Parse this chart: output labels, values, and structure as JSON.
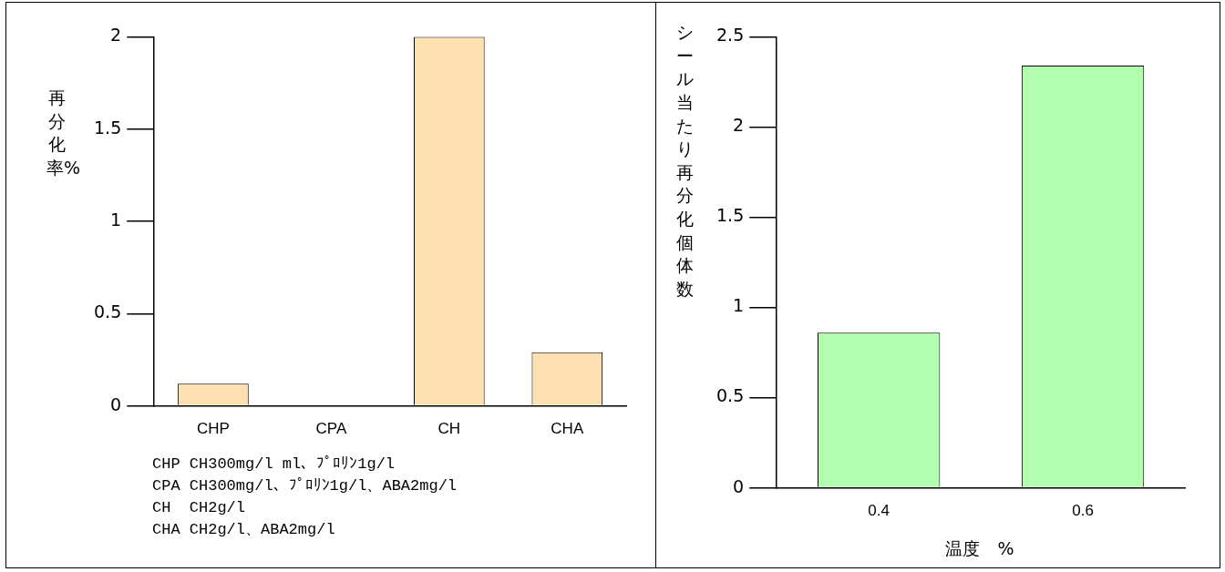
{
  "chart_data": [
    {
      "type": "bar",
      "ylabel": "再分化率%",
      "categories": [
        "CHP",
        "CPA",
        "CH",
        "CHA"
      ],
      "values": [
        0.12,
        0,
        2,
        0.29
      ],
      "color": "#fde0b0",
      "ylim": [
        0,
        2
      ],
      "yticks": [
        0,
        0.5,
        1,
        1.5,
        2
      ],
      "grid": false,
      "legend": false,
      "annotations": [
        "CHP CH300mg/l ml、ﾌﾟﾛﾘﾝ1g/l",
        "CPA CH300mg/l、ﾌﾟﾛﾘﾝ1g/l、ABA2mg/l",
        "CH  CH2g/l",
        "CHA CH2g/l、ABA2mg/l"
      ]
    },
    {
      "type": "bar",
      "ylabel": "シール当たり再分化個体数",
      "xlabel": "温度　%",
      "categories": [
        "0.4",
        "0.6"
      ],
      "values": [
        0.86,
        2.34
      ],
      "color": "#b3fdb0",
      "ylim": [
        0,
        2.5
      ],
      "yticks": [
        0,
        0.5,
        1,
        1.5,
        2,
        2.5
      ],
      "grid": false,
      "legend": false
    }
  ]
}
